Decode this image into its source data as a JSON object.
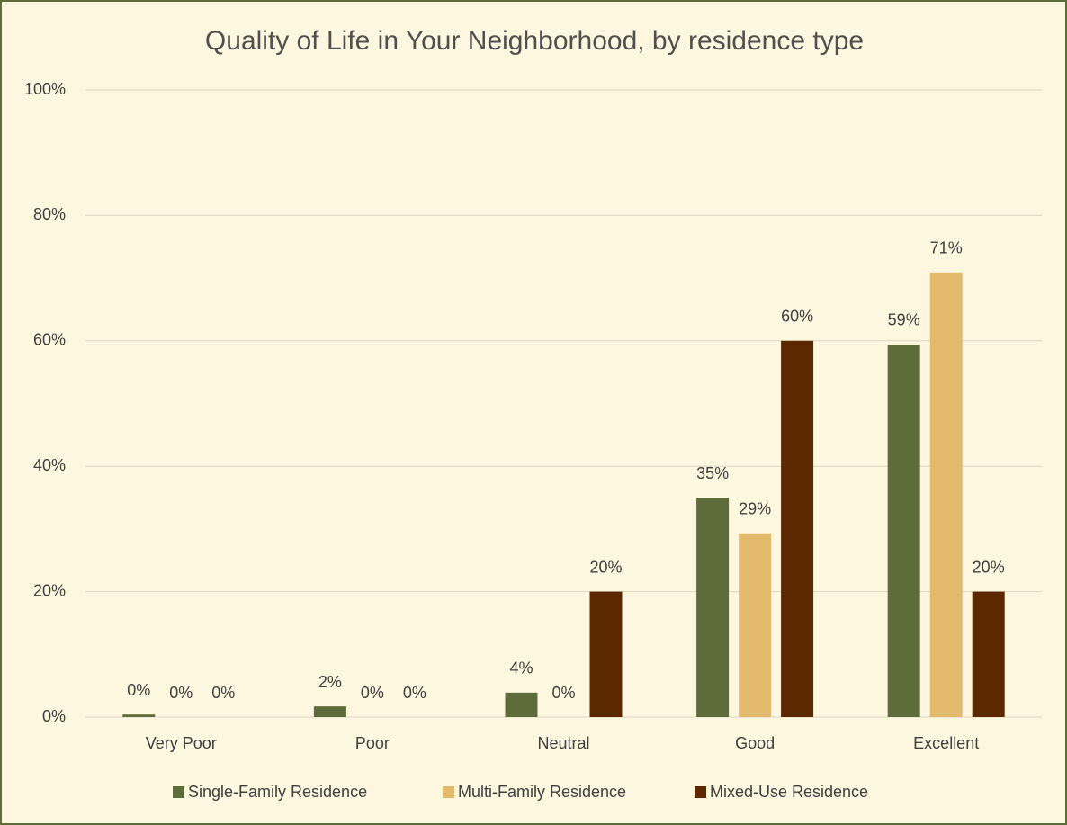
{
  "chart_data": {
    "type": "bar",
    "title": "Quality of Life in Your Neighborhood, by residence type",
    "categories": [
      "Very Poor",
      "Poor",
      "Neutral",
      "Good",
      "Excellent"
    ],
    "series": [
      {
        "name": "Single-Family Residence",
        "color": "#5e6b3a",
        "values": [
          0.4,
          1.7,
          3.9,
          35.0,
          59.4
        ],
        "value_labels": [
          "0%",
          "2%",
          "4%",
          "35%",
          "59%"
        ]
      },
      {
        "name": "Multi-Family Residence",
        "color": "#e3b96c",
        "values": [
          0,
          0,
          0,
          29.3,
          70.9
        ],
        "value_labels": [
          "0%",
          "0%",
          "0%",
          "29%",
          "71%"
        ]
      },
      {
        "name": "Mixed-Use Residence",
        "color": "#5c2800",
        "values": [
          0,
          0,
          20,
          60,
          20
        ],
        "value_labels": [
          "0%",
          "0%",
          "20%",
          "60%",
          "20%"
        ]
      }
    ],
    "ylim": [
      0,
      100
    ],
    "yticks": [
      {
        "value": 0,
        "label": "0%"
      },
      {
        "value": 20,
        "label": "20%"
      },
      {
        "value": 40,
        "label": "40%"
      },
      {
        "value": 60,
        "label": "60%"
      },
      {
        "value": 80,
        "label": "80%"
      },
      {
        "value": 100,
        "label": "100%"
      }
    ],
    "grid": true,
    "legend": "bottom"
  }
}
